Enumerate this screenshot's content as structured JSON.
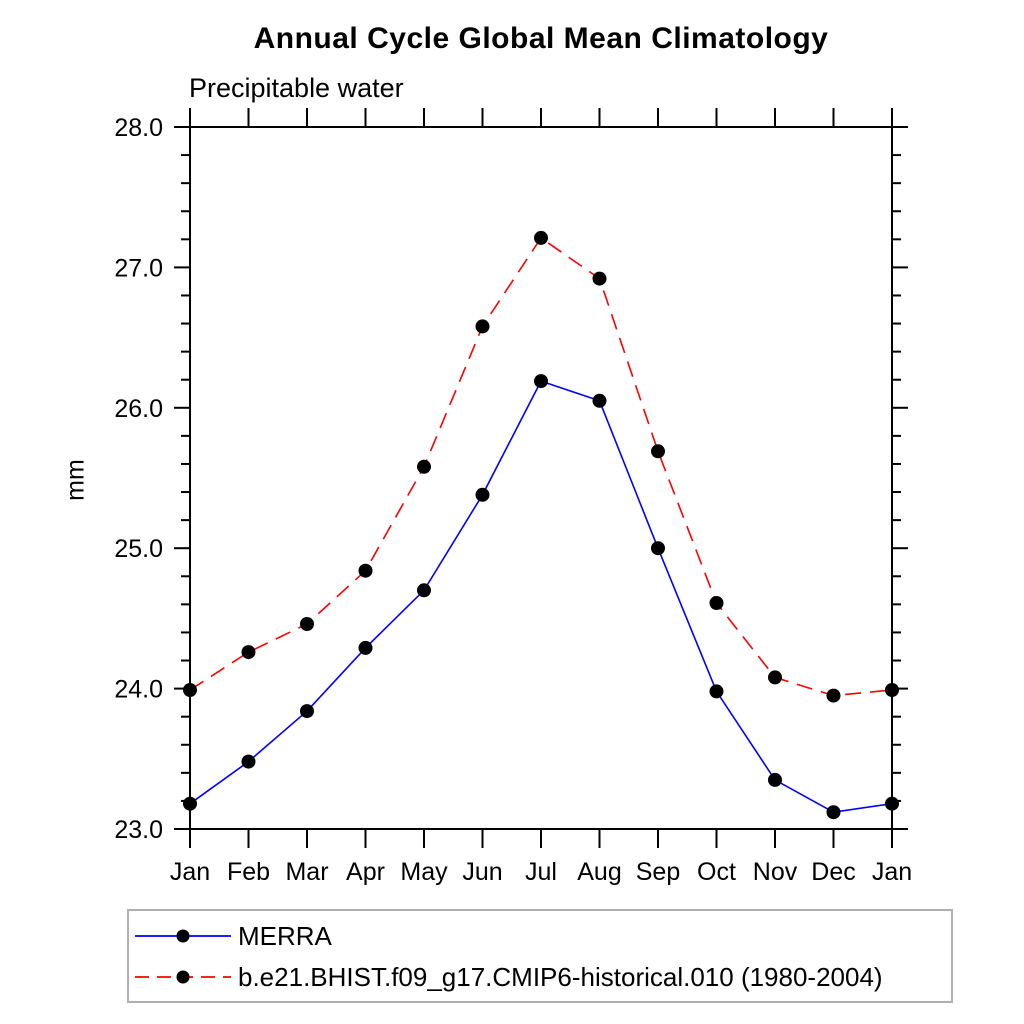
{
  "title": "Annual Cycle Global Mean Climatology",
  "subtitle": "Precipitable water",
  "ylabel": "mm",
  "legend": {
    "position": "bottom-left-box",
    "entries": [
      {
        "label": "MERRA",
        "color": "#0000ff",
        "style": "solid",
        "marker": "black-dot"
      },
      {
        "label": "b.e21.BHIST.f09_g17.CMIP6-historical.010 (1980-2004)",
        "color": "#ff0000",
        "style": "dashed",
        "marker": "black-dot"
      }
    ]
  },
  "chart_data": {
    "type": "line",
    "title": "Annual Cycle Global Mean Climatology",
    "subtitle": "Precipitable water",
    "xlabel": "",
    "ylabel": "mm",
    "categories": [
      "Jan",
      "Feb",
      "Mar",
      "Apr",
      "May",
      "Jun",
      "Jul",
      "Aug",
      "Sep",
      "Oct",
      "Nov",
      "Dec",
      "Jan"
    ],
    "series": [
      {
        "name": "MERRA",
        "color": "#0000ff",
        "line_style": "solid",
        "marker": "black-dot",
        "values": [
          23.18,
          23.48,
          23.84,
          24.29,
          24.7,
          25.38,
          26.19,
          26.05,
          25.0,
          23.98,
          23.35,
          23.12,
          23.18
        ]
      },
      {
        "name": "b.e21.BHIST.f09_g17.CMIP6-historical.010 (1980-2004)",
        "color": "#ff0000",
        "line_style": "dashed",
        "marker": "black-dot",
        "values": [
          23.99,
          24.26,
          24.46,
          24.84,
          25.58,
          26.58,
          27.21,
          26.92,
          25.69,
          24.61,
          24.08,
          23.95,
          23.99
        ]
      }
    ],
    "ylim": [
      23.0,
      28.0
    ],
    "yticks_major": [
      23.0,
      24.0,
      25.0,
      26.0,
      27.0,
      28.0
    ],
    "ytick_labels": [
      "23.0",
      "24.0",
      "25.0",
      "26.0",
      "27.0",
      "28.0"
    ],
    "y_minor_tick_interval": 0.2,
    "grid": false,
    "frame": "box-with-outward-ticks",
    "marker_color": "#000000",
    "legend_position": "bottom-left-box"
  }
}
